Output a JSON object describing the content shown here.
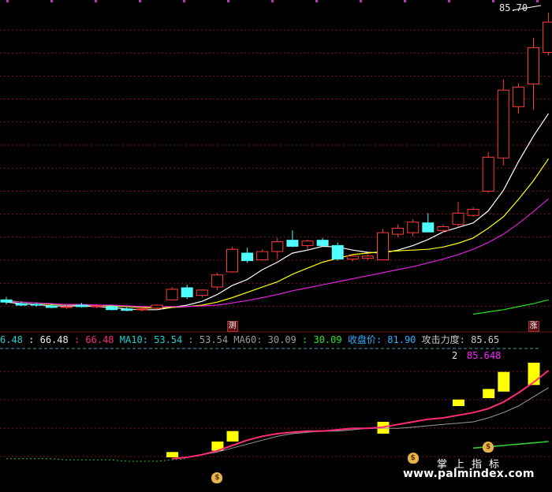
{
  "chart_data": [
    {
      "type": "candlestick",
      "title": "",
      "ylim": [
        44.5,
        86.5
      ],
      "max_label": "85.70",
      "grid": true,
      "candles": [
        {
          "o": 47.6,
          "h": 48.0,
          "l": 47.0,
          "c": 47.3
        },
        {
          "o": 47.1,
          "h": 47.4,
          "l": 46.8,
          "c": 46.9
        },
        {
          "o": 47.0,
          "h": 47.2,
          "l": 46.7,
          "c": 46.9
        },
        {
          "o": 46.8,
          "h": 47.1,
          "l": 46.5,
          "c": 46.6
        },
        {
          "o": 46.6,
          "h": 46.9,
          "l": 46.4,
          "c": 46.7
        },
        {
          "o": 46.9,
          "h": 47.2,
          "l": 46.6,
          "c": 46.7
        },
        {
          "o": 46.7,
          "h": 47.0,
          "l": 46.5,
          "c": 46.8
        },
        {
          "o": 46.7,
          "h": 46.9,
          "l": 46.2,
          "c": 46.3
        },
        {
          "o": 46.4,
          "h": 46.6,
          "l": 46.1,
          "c": 46.2
        },
        {
          "o": 46.3,
          "h": 46.6,
          "l": 46.1,
          "c": 46.4
        },
        {
          "o": 46.5,
          "h": 47.0,
          "l": 46.3,
          "c": 46.9
        },
        {
          "o": 47.6,
          "h": 49.3,
          "l": 47.5,
          "c": 49.0
        },
        {
          "o": 49.2,
          "h": 49.6,
          "l": 47.7,
          "c": 48.0
        },
        {
          "o": 48.2,
          "h": 49.0,
          "l": 47.9,
          "c": 48.9
        },
        {
          "o": 49.3,
          "h": 51.2,
          "l": 48.9,
          "c": 50.9
        },
        {
          "o": 51.3,
          "h": 54.6,
          "l": 51.2,
          "c": 54.3
        },
        {
          "o": 53.8,
          "h": 54.5,
          "l": 52.5,
          "c": 52.8
        },
        {
          "o": 52.9,
          "h": 54.3,
          "l": 52.8,
          "c": 54.0
        },
        {
          "o": 54.0,
          "h": 55.8,
          "l": 53.0,
          "c": 55.3
        },
        {
          "o": 55.5,
          "h": 56.8,
          "l": 54.6,
          "c": 54.7
        },
        {
          "o": 54.8,
          "h": 55.6,
          "l": 54.3,
          "c": 55.4
        },
        {
          "o": 55.5,
          "h": 55.8,
          "l": 54.6,
          "c": 54.8
        },
        {
          "o": 54.8,
          "h": 55.2,
          "l": 52.8,
          "c": 53.0
        },
        {
          "o": 53.0,
          "h": 53.6,
          "l": 52.7,
          "c": 53.4
        },
        {
          "o": 53.1,
          "h": 53.6,
          "l": 52.9,
          "c": 53.4
        },
        {
          "o": 52.9,
          "h": 57.0,
          "l": 52.9,
          "c": 56.5
        },
        {
          "o": 56.3,
          "h": 57.6,
          "l": 55.9,
          "c": 57.1
        },
        {
          "o": 56.5,
          "h": 58.3,
          "l": 56.0,
          "c": 57.9
        },
        {
          "o": 57.8,
          "h": 59.1,
          "l": 56.6,
          "c": 56.6
        },
        {
          "o": 56.8,
          "h": 57.6,
          "l": 56.5,
          "c": 57.3
        },
        {
          "o": 57.6,
          "h": 60.6,
          "l": 57.2,
          "c": 59.1
        },
        {
          "o": 58.8,
          "h": 59.9,
          "l": 58.6,
          "c": 59.6
        },
        {
          "o": 62.0,
          "h": 67.2,
          "l": 61.8,
          "c": 66.5
        },
        {
          "o": 66.4,
          "h": 76.8,
          "l": 65.4,
          "c": 75.4
        },
        {
          "o": 73.2,
          "h": 76.3,
          "l": 72.3,
          "c": 75.8
        },
        {
          "o": 76.2,
          "h": 82.3,
          "l": 72.8,
          "c": 81.0
        },
        {
          "o": 80.4,
          "h": 85.7,
          "l": 80.0,
          "c": 84.4
        }
      ],
      "ma_lines": [
        {
          "name": "MA5",
          "color": "#ffffff",
          "start": 0,
          "values": [
            47.3,
            47.1,
            47.0,
            46.8,
            46.8,
            46.8,
            46.7,
            46.6,
            46.4,
            46.3,
            46.3,
            46.6,
            46.9,
            47.4,
            48.3,
            49.5,
            50.3,
            51.6,
            52.6,
            53.8,
            54.2,
            54.7,
            54.6,
            54.2,
            53.9,
            53.8,
            54.2,
            54.8,
            55.6,
            56.6,
            57.2,
            57.8,
            59.4,
            62.1,
            65.9,
            69.3,
            72.3
          ]
        },
        {
          "name": "MA10",
          "color": "#ffff00",
          "start": 0,
          "values": [
            47.5,
            47.3,
            47.2,
            47.0,
            47.0,
            46.9,
            46.9,
            46.8,
            46.7,
            46.6,
            46.5,
            46.6,
            46.7,
            46.9,
            47.3,
            47.9,
            48.6,
            49.3,
            50.0,
            51.0,
            51.8,
            52.6,
            53.1,
            53.6,
            53.8,
            54.0,
            54.1,
            54.2,
            54.3,
            54.6,
            55.1,
            55.8,
            57.1,
            58.6,
            60.9,
            63.4,
            66.3
          ]
        },
        {
          "name": "MA20",
          "color": "#e020e0",
          "start": 0,
          "values": [
            47.4,
            47.3,
            47.2,
            47.1,
            47.0,
            47.0,
            46.9,
            46.9,
            46.8,
            46.7,
            46.7,
            46.7,
            46.7,
            46.8,
            46.9,
            47.2,
            47.5,
            47.9,
            48.3,
            48.8,
            49.2,
            49.6,
            50.0,
            50.4,
            50.8,
            51.2,
            51.6,
            52.0,
            52.5,
            53.0,
            53.6,
            54.3,
            55.2,
            56.3,
            57.7,
            59.3,
            61.0
          ]
        },
        {
          "name": "MA60",
          "color": "#20e020",
          "start": 31,
          "values": [
            45.7,
            46.0,
            46.3,
            46.7,
            47.1,
            47.6
          ]
        }
      ],
      "badges": [
        {
          "index": 15,
          "text": "测"
        },
        {
          "index": 35,
          "text": "涨"
        }
      ]
    },
    {
      "type": "bar",
      "title": "",
      "legend_values": [
        "6.48",
        ": 66.48",
        ": 66.48",
        "MA10: 53.54",
        ": 53.54",
        "MA60: 30.09",
        ": 30.09",
        "收盘价: 81.90",
        "攻击力度: 85.65"
      ],
      "indicator_labels": [
        "2",
        "85.648"
      ],
      "ylim": [
        0,
        90
      ],
      "bars": [
        {
          "index": 11,
          "from": 18,
          "to": 22
        },
        {
          "index": 14,
          "from": 23,
          "to": 30
        },
        {
          "index": 15,
          "from": 30,
          "to": 38
        },
        {
          "index": 25,
          "from": 36,
          "to": 45
        },
        {
          "index": 30,
          "from": 57,
          "to": 62
        },
        {
          "index": 32,
          "from": 63,
          "to": 70
        },
        {
          "index": 33,
          "from": 68,
          "to": 83
        },
        {
          "index": 35,
          "from": 73,
          "to": 90
        }
      ],
      "lines": [
        {
          "name": "dotted",
          "color": "#30c030",
          "dash": true,
          "start": 0,
          "values": [
            17,
            17,
            17,
            17,
            16,
            16,
            16,
            16,
            15,
            15,
            15,
            16,
            17
          ]
        },
        {
          "name": "white",
          "color": "#9a9a9a",
          "start": 11,
          "values": [
            17,
            18,
            20,
            22,
            25,
            28,
            31,
            34,
            36,
            37,
            38,
            38,
            39,
            40,
            40,
            40,
            41,
            42,
            43,
            44,
            45,
            48,
            52,
            57,
            64,
            71
          ]
        },
        {
          "name": "pink",
          "color": "#ff2a7a",
          "start": 11,
          "values": [
            17,
            18,
            20,
            23,
            27,
            31,
            34,
            36,
            37,
            38,
            38,
            39,
            40,
            40,
            41,
            43,
            45,
            47,
            48,
            50,
            52,
            55,
            60,
            67,
            75,
            84
          ]
        },
        {
          "name": "green",
          "color": "#30d030",
          "start": 31,
          "values": [
            25,
            26,
            27,
            28,
            29,
            30
          ]
        }
      ],
      "markers": [
        {
          "index": 14,
          "text": "$"
        },
        {
          "index": 27,
          "text": "$"
        },
        {
          "index": 32,
          "text": "$"
        }
      ]
    }
  ],
  "colors": {
    "up": "#ff3b3b",
    "down": "#4fffff",
    "grid": "#7a1a1a",
    "legend_white": "#e8e8e8",
    "legend_pink": "#ff2a7a",
    "legend_cyan": "#20d0d0",
    "legend_gray": "#9a9a9a",
    "legend_green": "#30e030",
    "legend_blue": "#2ab0ff",
    "legend_magenta": "#ff20ff"
  },
  "watermark": {
    "cn": "掌上指标",
    "url": "www.palmindex.com"
  }
}
